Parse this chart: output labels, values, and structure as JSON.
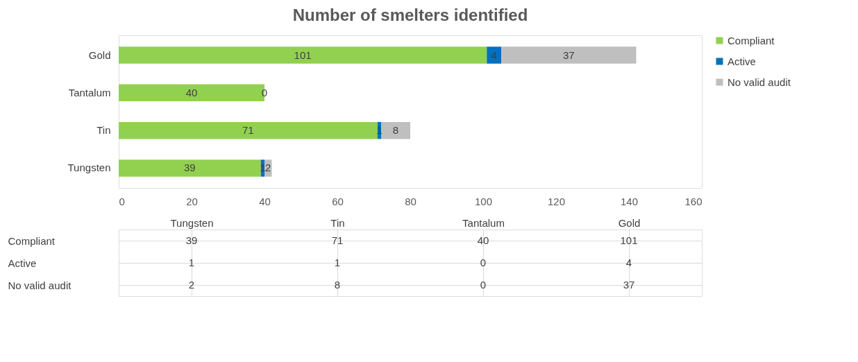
{
  "chart_data": [
    {
      "type": "bar",
      "orientation": "horizontal",
      "stacked": true,
      "title": "Number of smelters identified",
      "categories": [
        "Gold",
        "Tantalum",
        "Tin",
        "Tungsten"
      ],
      "series": [
        {
          "name": "Compliant",
          "color": "#92d050",
          "values": [
            101,
            40,
            71,
            39
          ],
          "value_labels": [
            "101",
            "40",
            "71",
            "39"
          ]
        },
        {
          "name": "Active",
          "color": "#0070c0",
          "values": [
            4,
            0,
            1,
            1
          ],
          "value_labels": [
            "4",
            "0",
            "1",
            "1"
          ]
        },
        {
          "name": "No valid audit",
          "color": "#bfbfbf",
          "values": [
            37,
            0,
            8,
            2
          ],
          "value_labels": [
            "37",
            null,
            "8",
            "2"
          ]
        }
      ],
      "xlim": [
        0,
        160
      ],
      "xticks": [
        0,
        20,
        40,
        60,
        80,
        100,
        120,
        140,
        160
      ],
      "grid": false,
      "legend": "right"
    },
    {
      "type": "heatmap",
      "categories": [
        "Tungsten",
        "Tin",
        "Tantalum",
        "Gold"
      ],
      "y_categories": [
        "Compliant",
        "Active",
        "No valid audit"
      ],
      "cells": [
        [
          39,
          71,
          40,
          101
        ],
        [
          1,
          1,
          0,
          4
        ],
        [
          2,
          8,
          0,
          37
        ]
      ],
      "data_labels": true,
      "grid": true
    }
  ]
}
